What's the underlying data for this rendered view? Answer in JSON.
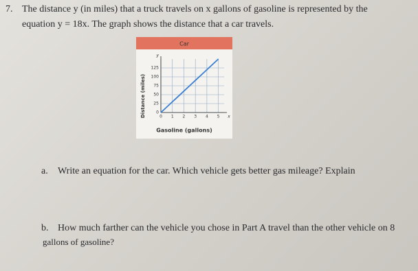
{
  "question": {
    "number": "7.",
    "lines": [
      "The distance y (in miles) that a truck travels on x gallons of gasoline is represented by the",
      "equation y = 18x. The graph shows the distance that a car travels."
    ]
  },
  "chart_data": {
    "type": "line",
    "title": "Car",
    "x_label": "Gasoline (gallons)",
    "y_label": "Distance (miles)",
    "x_var": "x",
    "y_var": "y",
    "x": [
      0,
      1,
      2,
      3,
      4,
      5
    ],
    "series": [
      {
        "color": "#3b7fd0",
        "values": [
          0,
          30,
          60,
          90,
          120,
          150
        ]
      }
    ],
    "xlim": [
      0,
      5.5
    ],
    "ylim": [
      0,
      150
    ],
    "xticks": [
      0,
      1,
      2,
      3,
      4,
      5
    ],
    "yticks": [
      0,
      25,
      50,
      75,
      100,
      125
    ],
    "grid": true
  },
  "part_a": {
    "letter": "a.",
    "text": "Write an equation for the car. Which vehicle gets better gas mileage? Explain"
  },
  "part_b": {
    "letter": "b.",
    "lines": [
      "How much farther can the vehicle you chose in Part A travel than the other vehicle on 8",
      "gallons of gasoline?"
    ]
  }
}
